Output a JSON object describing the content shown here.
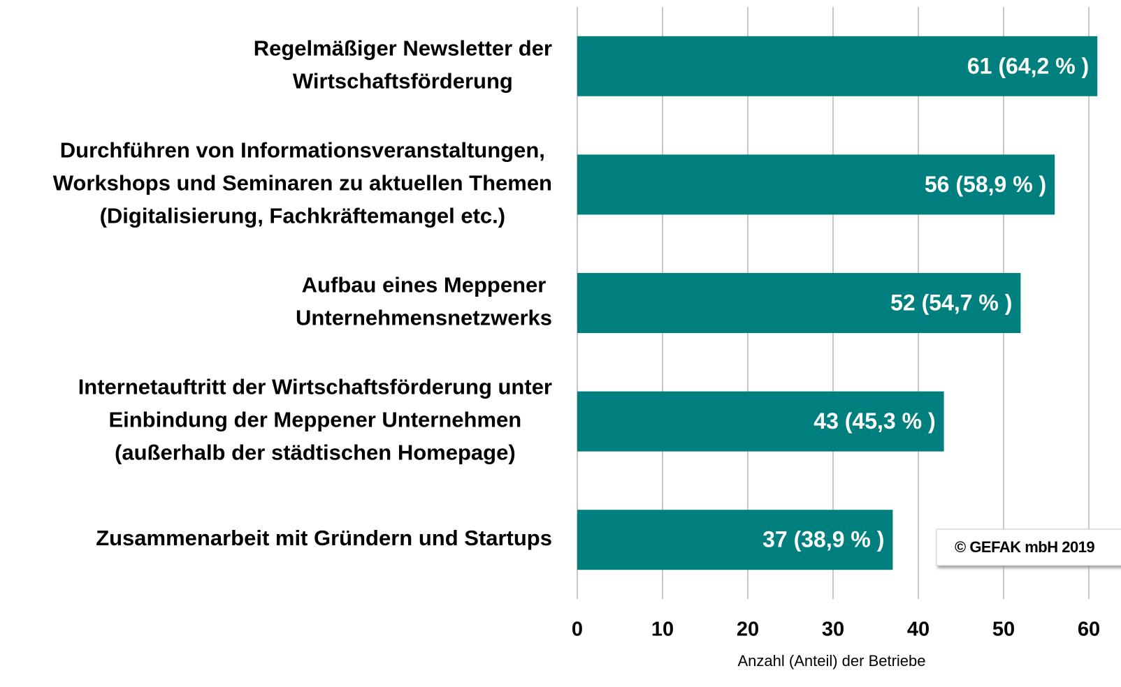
{
  "chart_data": {
    "type": "bar",
    "orientation": "horizontal",
    "categories": [
      "Regelmäßiger Newsletter der\nWirtschaftsförderung",
      "Durchführen von Informationsveranstaltungen,\nWorkshops und Seminaren zu aktuellen Themen\n(Digitalisierung, Fachkräftemangel etc.)",
      "Aufbau eines Meppener\nUnternehmensnetzwerks",
      "Internetauftritt der Wirtschaftsförderung unter\nEinbindung der Meppener Unternehmen\n(außerhalb der städtischen Homepage)",
      "Zusammenarbeit mit Gründern und Startups"
    ],
    "values": [
      61,
      56,
      52,
      43,
      37
    ],
    "value_labels": [
      "61 (64,2 % )",
      "56 (58,9 % )",
      "52 (54,7 % )",
      "43 (45,3 % )",
      "37 (38,9 % )"
    ],
    "color": "#007f7f",
    "xlim": [
      0,
      60
    ],
    "xticks": [
      0,
      10,
      20,
      30,
      40,
      50,
      60
    ],
    "grid": true,
    "xlabel": "Anzahl (Anteil) der Betriebe",
    "annotation": "© GEFAK mbH 2019"
  }
}
